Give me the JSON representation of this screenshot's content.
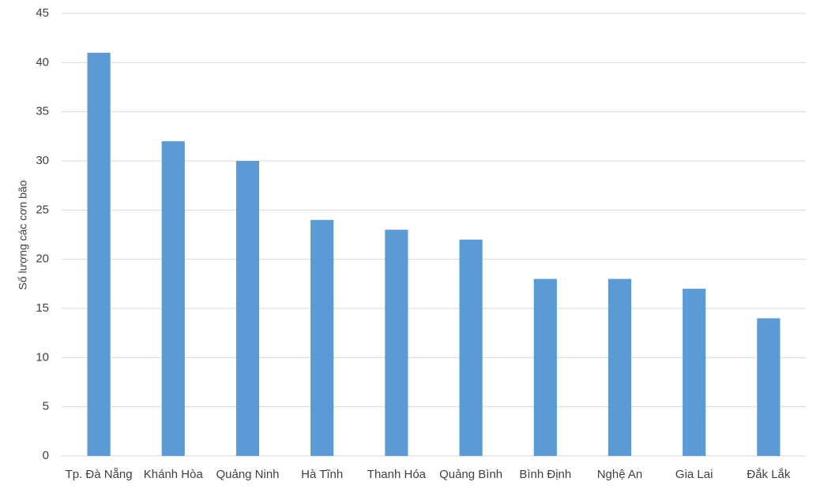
{
  "chart_data": {
    "type": "bar",
    "y_label": "Số lượng các cơn bão",
    "categories": [
      "Tp. Đà Nẵng",
      "Khánh Hòa",
      "Quảng Ninh",
      "Hà Tĩnh",
      "Thanh Hóa",
      "Quảng Bình",
      "Bình Định",
      "Nghệ An",
      "Gia Lai",
      "Đắk Lắk"
    ],
    "values": [
      41,
      32,
      30,
      24,
      23,
      22,
      18,
      18,
      17,
      14
    ],
    "color": "#5b9bd5",
    "ylim": [
      0,
      45
    ],
    "yticks": [
      0,
      5,
      10,
      15,
      20,
      25,
      30,
      35,
      40,
      45
    ],
    "grid": true
  }
}
